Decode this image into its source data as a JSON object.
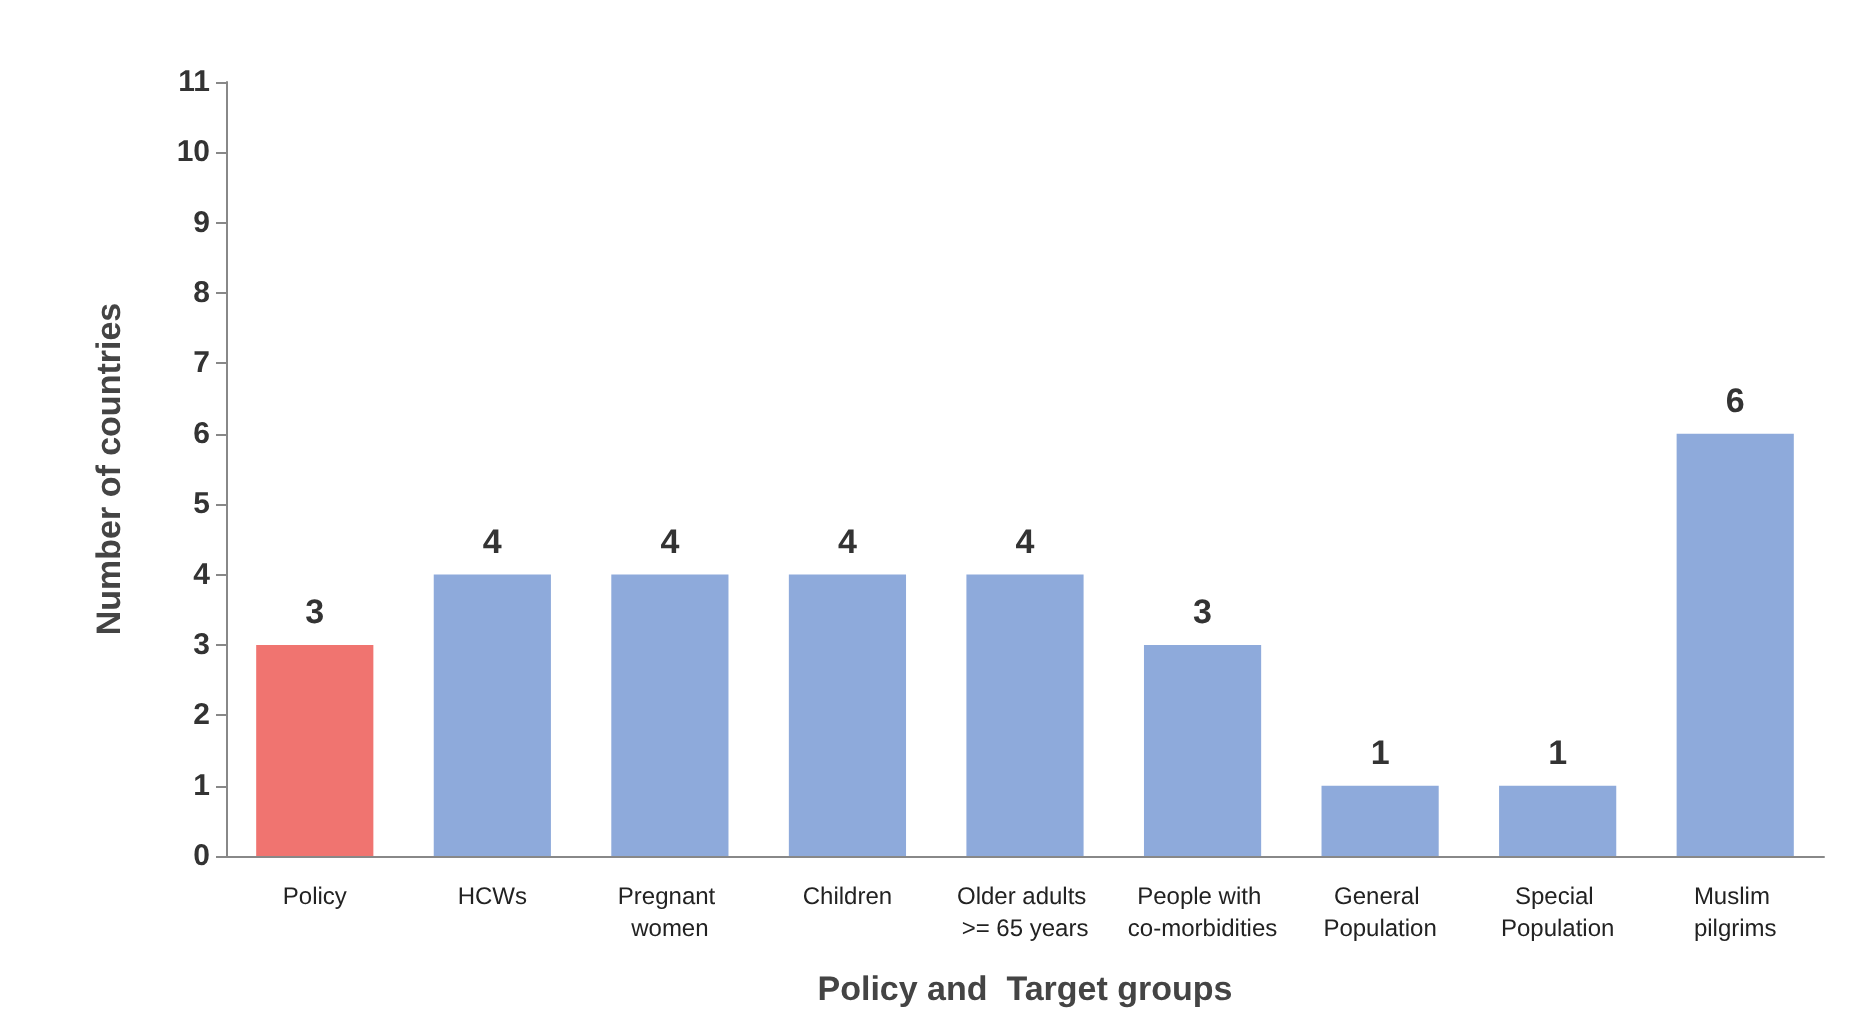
{
  "chart_data": {
    "type": "bar",
    "xlabel": "Policy and  Target groups",
    "ylabel": "Number of countries",
    "categories": [
      "Policy",
      "HCWs",
      "Pregnant women",
      "Children",
      "Older adults >= 65 years",
      "People with co-morbidities",
      "General Population",
      "Special Population",
      "Muslim pilgrims"
    ],
    "values": [
      3,
      4,
      4,
      4,
      4,
      3,
      1,
      1,
      6
    ],
    "colors": [
      "#f07470",
      "#8eaadb",
      "#8eaadb",
      "#8eaadb",
      "#8eaadb",
      "#8eaadb",
      "#8eaadb",
      "#8eaadb",
      "#8eaadb"
    ],
    "ylim": [
      0,
      11
    ],
    "yticks": [
      0,
      1,
      2,
      3,
      4,
      5,
      6,
      7,
      8,
      9,
      10,
      11
    ],
    "data_labels": true
  }
}
